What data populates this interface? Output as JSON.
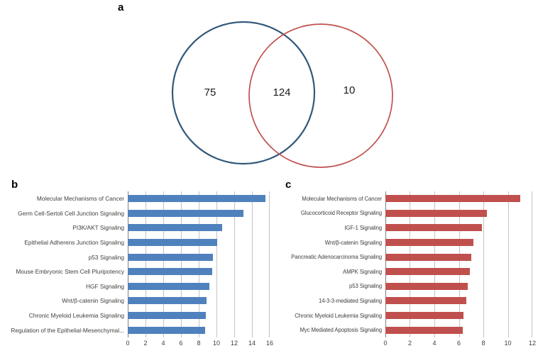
{
  "panels": {
    "a": {
      "label": "a"
    },
    "b": {
      "label": "b"
    },
    "c": {
      "label": "c"
    }
  },
  "venn": {
    "left_count": "75",
    "intersection_count": "124",
    "right_count": "10",
    "left_circle_color": "#31587a",
    "right_circle_color": "#c0504d"
  },
  "chart_data": [
    {
      "type": "bar",
      "panel": "b",
      "orientation": "horizontal",
      "bar_color": "#4f81bd",
      "title": "",
      "xlabel": "",
      "ylabel": "",
      "categories": [
        "Molecular Mechanisms of Cancer",
        "Germ Cell-Sertoli Cell Junction Signaling",
        "PI3K/AKT Signaling",
        "Epithelial Adherens Junction Signaling",
        "p53 Signaling",
        "Mouse Embryonic Stem Cell Pluripotency",
        "HGF Signaling",
        "Wnt/β-catenin Signaling",
        "Chronic Myeloid Leukemia Signaling",
        "Regulation of the Epithelial-Mesenchymal..."
      ],
      "values": [
        15.5,
        13,
        10.6,
        10.1,
        9.6,
        9.5,
        9.2,
        8.9,
        8.8,
        8.7
      ],
      "xlim": [
        0,
        16
      ],
      "xticks": [
        0,
        2,
        4,
        6,
        8,
        10,
        12,
        14,
        16
      ],
      "grid": true,
      "legend": "none"
    },
    {
      "type": "bar",
      "panel": "c",
      "orientation": "horizontal",
      "bar_color": "#c0504d",
      "title": "",
      "xlabel": "",
      "ylabel": "",
      "categories": [
        "Molecular Mechanisms of Cancer",
        "Glucocorticoid Receptor Signaling",
        "IGF-1 Signaling",
        "Wnt/β-catenin Signaling",
        "Pancreatic Adenocarcinoma Signaling",
        "AMPK Signaling",
        "p53 Signaling",
        "14-3-3-mediated Signaling",
        "Chronic Myeloid Leukemia Signaling",
        "Myc Mediated Apoptosis Signaling"
      ],
      "values": [
        11,
        8.3,
        7.9,
        7.2,
        7.0,
        6.9,
        6.7,
        6.6,
        6.4,
        6.3
      ],
      "xlim": [
        0,
        12
      ],
      "xticks": [
        0,
        2,
        4,
        6,
        8,
        10,
        12
      ],
      "grid": true,
      "legend": "none"
    }
  ]
}
